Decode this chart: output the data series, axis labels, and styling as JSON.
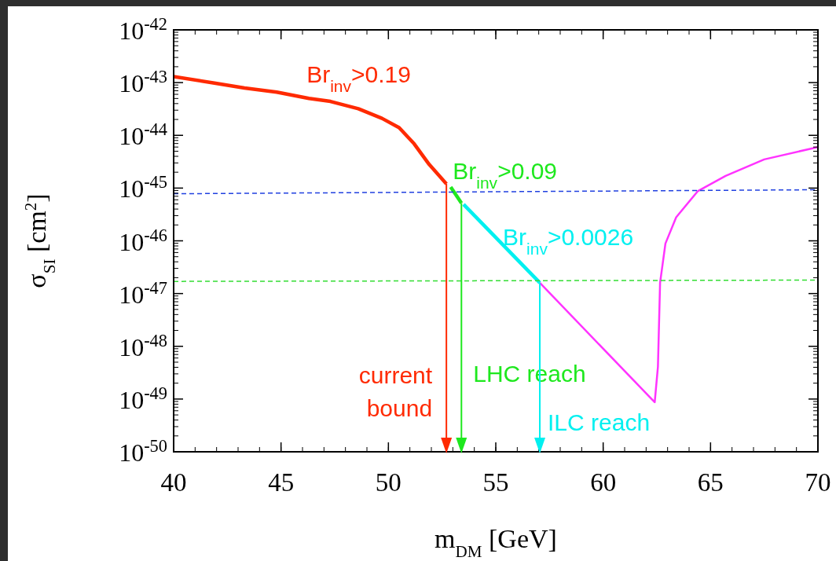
{
  "chart_data": {
    "type": "line",
    "xlabel": "m$_{DM}$ [GeV]",
    "ylabel": "σ$_{SI}$ [cm$^{2}$]",
    "log": "y",
    "xlim": [
      40,
      70
    ],
    "xticks": [
      40,
      45,
      50,
      55,
      60,
      65,
      70
    ],
    "ylim": [
      1e-50,
      1e-42
    ],
    "yticks": [
      {
        "value": 1e-50,
        "label": "10$^{-50}$"
      },
      {
        "value": 1e-49,
        "label": "10$^{-49}$"
      },
      {
        "value": 1e-48,
        "label": "10$^{-48}$"
      },
      {
        "value": 1e-47,
        "label": "10$^{-47}$"
      },
      {
        "value": 1e-46,
        "label": "10$^{-46}$"
      },
      {
        "value": 1e-45,
        "label": "10$^{-45}$"
      },
      {
        "value": 1e-44,
        "label": "10$^{-44}$"
      },
      {
        "value": 1e-43,
        "label": "10$^{-43}$"
      },
      {
        "value": 1e-42,
        "label": "10$^{-42}$"
      }
    ],
    "series": [
      {
        "name": "Br$_{inv}$>0.19",
        "color": "#ff2a00",
        "x": [
          40.0,
          41.9,
          43.3,
          44.8,
          46.3,
          47.3,
          48.6,
          49.7,
          50.5,
          51.2,
          51.9,
          52.7
        ],
        "values": [
          1.3e-43,
          9.8e-44,
          7.9e-44,
          6.6e-44,
          5e-44,
          4.4e-44,
          3.2e-44,
          2.1e-44,
          1.4e-44,
          6.9e-45,
          2.8e-45,
          1.2e-45
        ]
      },
      {
        "name": "Br$_{inv}$>0.09",
        "color": "#1ee81e",
        "x": [
          52.9,
          53.4
        ],
        "values": [
          1.05e-45,
          5.2e-46
        ]
      },
      {
        "name": "Br$_{inv}$>0.0026",
        "color": "#00f0f0",
        "x": [
          53.5,
          57.05
        ],
        "values": [
          4.9e-46,
          1.6e-47
        ]
      },
      {
        "color": "#ff33ff",
        "x": [
          57.05,
          62.4,
          62.55,
          62.65,
          62.9,
          63.4,
          64.4,
          65.7,
          67.5,
          70
        ],
        "values": [
          1.6e-47,
          8.7e-50,
          4.1e-49,
          1.6e-47,
          8.9e-47,
          2.8e-46,
          8.7e-46,
          1.7e-45,
          3.5e-45,
          6e-45
        ]
      },
      {
        "color": "#2040e0",
        "line_style": "dashed",
        "x": [
          40,
          70
        ],
        "values": [
          7.8e-46,
          9.3e-46
        ]
      },
      {
        "color": "#33dd33",
        "line_style": "dashed",
        "x": [
          40,
          70
        ],
        "values": [
          1.7e-47,
          1.8e-47
        ]
      }
    ],
    "ref_lines": [
      {
        "axis": "x",
        "value": 52.7,
        "label": "current bound",
        "color": "#ff2a00"
      },
      {
        "axis": "x",
        "value": 53.4,
        "label": "LHC reach",
        "color": "#1ee81e"
      },
      {
        "axis": "x",
        "value": 57.05,
        "label": "ILC reach",
        "color": "#00f0f0"
      }
    ]
  }
}
